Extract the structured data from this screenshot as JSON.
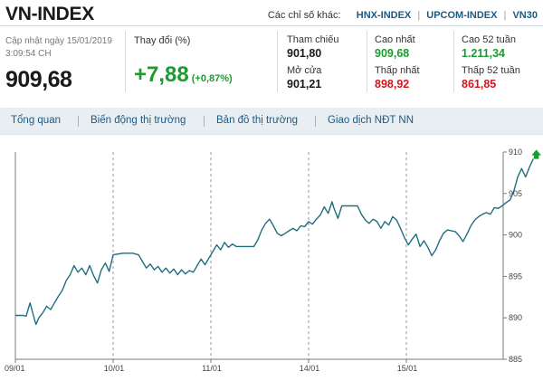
{
  "title": "VN-INDEX",
  "other_indices": {
    "label": "Các chỉ số khác:",
    "links": [
      "HNX-INDEX",
      "UPCOM-INDEX",
      "VN30"
    ]
  },
  "update": {
    "label": "Cập nhật ngày 15/01/2019",
    "time": "3:09:54 CH"
  },
  "last_value": "909,68",
  "change": {
    "label": "Thay đổi (%)",
    "value": "+7,88",
    "percent": "(+0,87%)"
  },
  "stats": {
    "reference": {
      "label": "Tham chiếu",
      "value": "901,80"
    },
    "open": {
      "label": "Mở cửa",
      "value": "901,21"
    },
    "high": {
      "label": "Cao nhất",
      "value": "909,68"
    },
    "low": {
      "label": "Thấp nhất",
      "value": "898,92"
    },
    "high52": {
      "label": "Cao 52 tuần",
      "value": "1.211,34"
    },
    "low52": {
      "label": "Thấp 52 tuần",
      "value": "861,85"
    }
  },
  "tabs": [
    "Tổng quan",
    "Biến động thị trường",
    "Bản đồ thị trường",
    "Giao dịch NĐT NN"
  ],
  "colors": {
    "line": "#1f6e80",
    "up": "#1a9c2e",
    "down": "#d4161c",
    "link": "#1c5a82",
    "nav_bg": "#e9eef2"
  },
  "chart_data": {
    "type": "line",
    "title": "",
    "xlabel": "",
    "ylabel": "",
    "categories": [
      "09/01",
      "10/01",
      "11/01",
      "14/01",
      "15/01"
    ],
    "ylim": [
      885,
      910
    ],
    "yticks": [
      885,
      890,
      895,
      900,
      905,
      910
    ],
    "grid": "vertical dashed at session dates",
    "end_marker": "green-up-arrow",
    "series": [
      {
        "name": "",
        "points": [
          [
            0,
            890.3
          ],
          [
            0.08,
            890.3
          ],
          [
            0.11,
            890.2
          ],
          [
            0.13,
            891.0
          ],
          [
            0.15,
            891.8
          ],
          [
            0.18,
            890.5
          ],
          [
            0.21,
            889.2
          ],
          [
            0.24,
            890.0
          ],
          [
            0.28,
            890.6
          ],
          [
            0.32,
            891.4
          ],
          [
            0.36,
            891.0
          ],
          [
            0.4,
            891.8
          ],
          [
            0.44,
            892.6
          ],
          [
            0.48,
            893.3
          ],
          [
            0.52,
            894.5
          ],
          [
            0.56,
            895.2
          ],
          [
            0.6,
            896.3
          ],
          [
            0.64,
            895.5
          ],
          [
            0.68,
            896.0
          ],
          [
            0.72,
            895.2
          ],
          [
            0.76,
            896.3
          ],
          [
            0.8,
            895.1
          ],
          [
            0.84,
            894.2
          ],
          [
            0.88,
            895.8
          ],
          [
            0.92,
            896.6
          ],
          [
            0.96,
            895.6
          ],
          [
            1.0,
            897.6
          ],
          [
            1.1,
            897.8
          ],
          [
            1.2,
            897.8
          ],
          [
            1.26,
            897.6
          ],
          [
            1.3,
            896.8
          ],
          [
            1.34,
            896.0
          ],
          [
            1.38,
            896.5
          ],
          [
            1.42,
            895.8
          ],
          [
            1.46,
            896.2
          ],
          [
            1.5,
            895.5
          ],
          [
            1.54,
            896.0
          ],
          [
            1.58,
            895.4
          ],
          [
            1.62,
            895.9
          ],
          [
            1.66,
            895.2
          ],
          [
            1.7,
            895.8
          ],
          [
            1.74,
            895.3
          ],
          [
            1.78,
            895.7
          ],
          [
            1.82,
            895.5
          ],
          [
            1.86,
            896.3
          ],
          [
            1.9,
            897.1
          ],
          [
            1.94,
            896.4
          ],
          [
            1.98,
            897.2
          ],
          [
            2.02,
            898.0
          ],
          [
            2.06,
            898.8
          ],
          [
            2.1,
            898.2
          ],
          [
            2.14,
            899.1
          ],
          [
            2.18,
            898.5
          ],
          [
            2.22,
            898.9
          ],
          [
            2.26,
            898.6
          ],
          [
            2.3,
            898.6
          ],
          [
            2.4,
            898.6
          ],
          [
            2.44,
            898.6
          ],
          [
            2.48,
            899.4
          ],
          [
            2.52,
            900.6
          ],
          [
            2.56,
            901.4
          ],
          [
            2.6,
            901.9
          ],
          [
            2.64,
            901.1
          ],
          [
            2.68,
            900.2
          ],
          [
            2.72,
            899.9
          ],
          [
            2.76,
            900.2
          ],
          [
            2.8,
            900.5
          ],
          [
            2.84,
            900.8
          ],
          [
            2.88,
            900.5
          ],
          [
            2.92,
            901.1
          ],
          [
            2.96,
            901.0
          ],
          [
            3.0,
            901.6
          ],
          [
            3.04,
            901.3
          ],
          [
            3.08,
            901.9
          ],
          [
            3.12,
            902.4
          ],
          [
            3.16,
            903.4
          ],
          [
            3.2,
            902.6
          ],
          [
            3.24,
            904.0
          ],
          [
            3.26,
            903.2
          ],
          [
            3.3,
            902.0
          ],
          [
            3.34,
            903.5
          ],
          [
            3.5,
            903.5
          ],
          [
            3.54,
            902.5
          ],
          [
            3.58,
            901.8
          ],
          [
            3.62,
            901.4
          ],
          [
            3.66,
            901.9
          ],
          [
            3.7,
            901.6
          ],
          [
            3.74,
            900.8
          ],
          [
            3.78,
            901.6
          ],
          [
            3.82,
            901.2
          ],
          [
            3.86,
            902.2
          ],
          [
            3.9,
            901.8
          ],
          [
            3.94,
            900.8
          ],
          [
            3.98,
            899.7
          ],
          [
            4.02,
            898.8
          ],
          [
            4.06,
            899.5
          ],
          [
            4.1,
            900.1
          ],
          [
            4.14,
            898.6
          ],
          [
            4.18,
            899.3
          ],
          [
            4.22,
            898.5
          ],
          [
            4.26,
            897.5
          ],
          [
            4.3,
            898.2
          ],
          [
            4.34,
            899.3
          ],
          [
            4.38,
            900.2
          ],
          [
            4.42,
            900.6
          ],
          [
            4.46,
            900.5
          ],
          [
            4.5,
            900.4
          ],
          [
            4.54,
            899.9
          ],
          [
            4.58,
            899.2
          ],
          [
            4.62,
            900.1
          ],
          [
            4.66,
            901.1
          ],
          [
            4.7,
            901.8
          ],
          [
            4.74,
            902.2
          ],
          [
            4.78,
            902.5
          ],
          [
            4.82,
            902.7
          ],
          [
            4.86,
            902.5
          ],
          [
            4.9,
            903.3
          ],
          [
            4.94,
            903.2
          ],
          [
            4.98,
            903.5
          ],
          [
            5.02,
            903.9
          ],
          [
            5.06,
            904.2
          ],
          [
            5.1,
            905.3
          ],
          [
            5.14,
            907.0
          ],
          [
            5.18,
            908.0
          ],
          [
            5.22,
            907.0
          ],
          [
            5.26,
            908.2
          ],
          [
            5.3,
            909.2
          ],
          [
            5.33,
            909.68
          ]
        ]
      }
    ]
  }
}
